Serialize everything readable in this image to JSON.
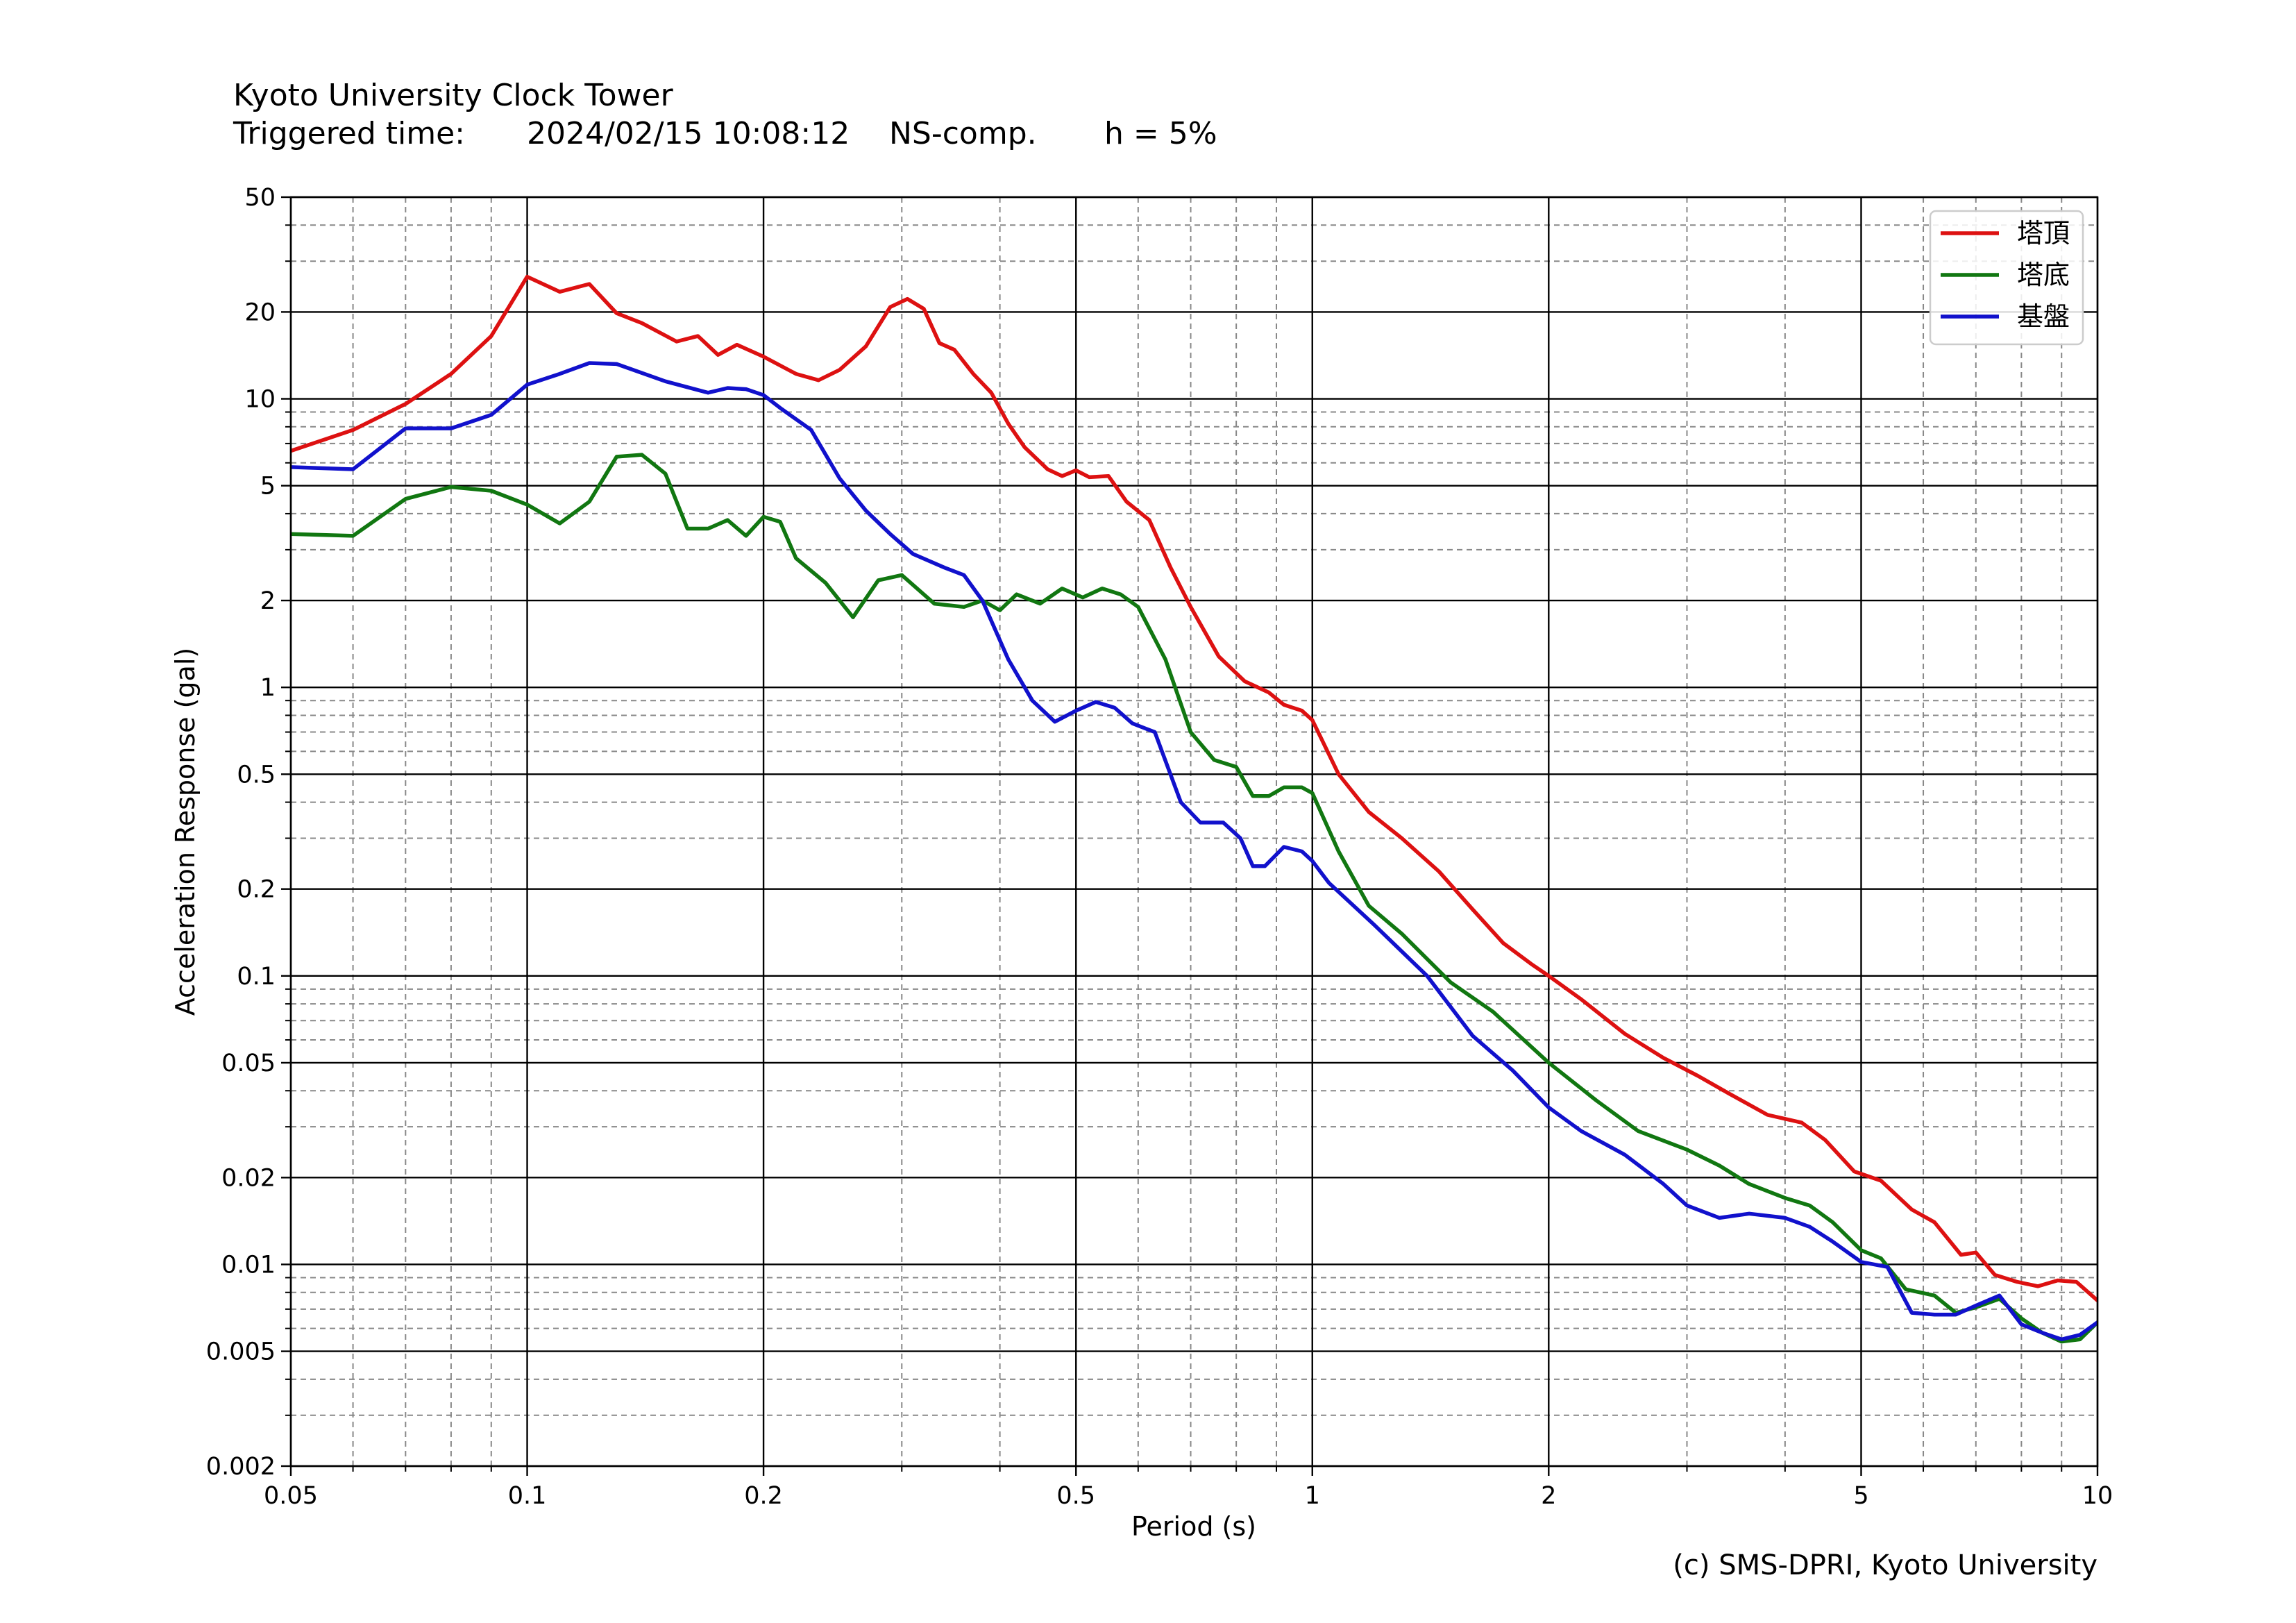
{
  "header": {
    "title": "Kyoto University Clock Tower",
    "triggered_label": "Triggered time:",
    "triggered_value": "2024/02/15 10:08:12",
    "component": "NS-comp.",
    "damping": "h = 5%"
  },
  "credit": "(c) SMS-DPRI, Kyoto University",
  "chart_data": {
    "type": "line",
    "title": "",
    "xlabel": "Period (s)",
    "ylabel": "Acceleration Response (gal)",
    "xscale": "log",
    "yscale": "log",
    "xlim": [
      0.05,
      10
    ],
    "ylim": [
      0.002,
      50
    ],
    "x_ticks": [
      0.05,
      0.1,
      0.2,
      0.5,
      1,
      2,
      5,
      10
    ],
    "x_tick_labels": [
      "0.05",
      "0.1",
      "0.2",
      "0.5",
      "1",
      "2",
      "5",
      "10"
    ],
    "y_ticks": [
      0.002,
      0.005,
      0.01,
      0.02,
      0.05,
      0.1,
      0.2,
      0.5,
      1,
      2,
      5,
      10,
      20,
      50
    ],
    "y_tick_labels": [
      "0.002",
      "0.005",
      "0.01",
      "0.02",
      "0.05",
      "0.1",
      "0.2",
      "0.5",
      "1",
      "2",
      "5",
      "10",
      "20",
      "50"
    ],
    "grid": "major and minor",
    "legend_position": "top-right",
    "series": [
      {
        "name": "塔頂",
        "color": "#dd1111",
        "points": [
          [
            0.05,
            6.6
          ],
          [
            0.06,
            7.8
          ],
          [
            0.07,
            9.6
          ],
          [
            0.08,
            12.2
          ],
          [
            0.09,
            16.5
          ],
          [
            0.1,
            26.5
          ],
          [
            0.11,
            23.5
          ],
          [
            0.12,
            25
          ],
          [
            0.13,
            19.8
          ],
          [
            0.14,
            18.3
          ],
          [
            0.155,
            15.8
          ],
          [
            0.165,
            16.5
          ],
          [
            0.175,
            14.2
          ],
          [
            0.185,
            15.4
          ],
          [
            0.2,
            14.0
          ],
          [
            0.22,
            12.2
          ],
          [
            0.235,
            11.6
          ],
          [
            0.25,
            12.6
          ],
          [
            0.27,
            15.2
          ],
          [
            0.29,
            20.8
          ],
          [
            0.305,
            22.2
          ],
          [
            0.32,
            20.5
          ],
          [
            0.335,
            15.6
          ],
          [
            0.35,
            14.8
          ],
          [
            0.37,
            12.2
          ],
          [
            0.39,
            10.5
          ],
          [
            0.41,
            8.2
          ],
          [
            0.43,
            6.8
          ],
          [
            0.46,
            5.7
          ],
          [
            0.48,
            5.4
          ],
          [
            0.5,
            5.65
          ],
          [
            0.52,
            5.35
          ],
          [
            0.55,
            5.4
          ],
          [
            0.58,
            4.4
          ],
          [
            0.62,
            3.8
          ],
          [
            0.66,
            2.6
          ],
          [
            0.7,
            1.9
          ],
          [
            0.76,
            1.28
          ],
          [
            0.82,
            1.05
          ],
          [
            0.88,
            0.96
          ],
          [
            0.92,
            0.87
          ],
          [
            0.97,
            0.83
          ],
          [
            1.0,
            0.77
          ],
          [
            1.08,
            0.5
          ],
          [
            1.18,
            0.37
          ],
          [
            1.3,
            0.3
          ],
          [
            1.45,
            0.23
          ],
          [
            1.6,
            0.17
          ],
          [
            1.75,
            0.13
          ],
          [
            1.9,
            0.11
          ],
          [
            2.0,
            0.1
          ],
          [
            2.2,
            0.083
          ],
          [
            2.5,
            0.063
          ],
          [
            2.8,
            0.052
          ],
          [
            3.1,
            0.045
          ],
          [
            3.4,
            0.039
          ],
          [
            3.8,
            0.033
          ],
          [
            4.2,
            0.031
          ],
          [
            4.5,
            0.027
          ],
          [
            4.9,
            0.021
          ],
          [
            5.3,
            0.0195
          ],
          [
            5.8,
            0.0155
          ],
          [
            6.2,
            0.014
          ],
          [
            6.7,
            0.0108
          ],
          [
            7.0,
            0.011
          ],
          [
            7.4,
            0.0092
          ],
          [
            7.9,
            0.0087
          ],
          [
            8.4,
            0.0084
          ],
          [
            8.9,
            0.0088
          ],
          [
            9.4,
            0.0087
          ],
          [
            10,
            0.0075
          ]
        ]
      },
      {
        "name": "塔底",
        "color": "#117711",
        "points": [
          [
            0.05,
            3.4
          ],
          [
            0.06,
            3.35
          ],
          [
            0.07,
            4.5
          ],
          [
            0.08,
            4.95
          ],
          [
            0.09,
            4.8
          ],
          [
            0.1,
            4.3
          ],
          [
            0.11,
            3.7
          ],
          [
            0.12,
            4.4
          ],
          [
            0.13,
            6.3
          ],
          [
            0.14,
            6.4
          ],
          [
            0.15,
            5.5
          ],
          [
            0.16,
            3.55
          ],
          [
            0.17,
            3.55
          ],
          [
            0.18,
            3.8
          ],
          [
            0.19,
            3.35
          ],
          [
            0.2,
            3.9
          ],
          [
            0.21,
            3.75
          ],
          [
            0.22,
            2.8
          ],
          [
            0.24,
            2.3
          ],
          [
            0.26,
            1.75
          ],
          [
            0.28,
            2.35
          ],
          [
            0.3,
            2.45
          ],
          [
            0.33,
            1.95
          ],
          [
            0.36,
            1.9
          ],
          [
            0.38,
            2.0
          ],
          [
            0.4,
            1.85
          ],
          [
            0.42,
            2.1
          ],
          [
            0.45,
            1.95
          ],
          [
            0.48,
            2.2
          ],
          [
            0.51,
            2.05
          ],
          [
            0.54,
            2.2
          ],
          [
            0.57,
            2.1
          ],
          [
            0.6,
            1.9
          ],
          [
            0.65,
            1.25
          ],
          [
            0.7,
            0.7
          ],
          [
            0.75,
            0.56
          ],
          [
            0.8,
            0.53
          ],
          [
            0.84,
            0.42
          ],
          [
            0.88,
            0.42
          ],
          [
            0.92,
            0.45
          ],
          [
            0.97,
            0.45
          ],
          [
            1.0,
            0.43
          ],
          [
            1.08,
            0.27
          ],
          [
            1.18,
            0.175
          ],
          [
            1.3,
            0.14
          ],
          [
            1.5,
            0.095
          ],
          [
            1.7,
            0.075
          ],
          [
            2.0,
            0.05
          ],
          [
            2.3,
            0.037
          ],
          [
            2.6,
            0.029
          ],
          [
            3.0,
            0.025
          ],
          [
            3.3,
            0.022
          ],
          [
            3.6,
            0.019
          ],
          [
            4.0,
            0.017
          ],
          [
            4.3,
            0.016
          ],
          [
            4.6,
            0.014
          ],
          [
            5.0,
            0.0112
          ],
          [
            5.3,
            0.0105
          ],
          [
            5.7,
            0.0082
          ],
          [
            6.2,
            0.0078
          ],
          [
            6.6,
            0.0068
          ],
          [
            7.0,
            0.0071
          ],
          [
            7.5,
            0.0076
          ],
          [
            8.0,
            0.0065
          ],
          [
            8.5,
            0.0058
          ],
          [
            9.0,
            0.0054
          ],
          [
            9.5,
            0.0055
          ],
          [
            10,
            0.0063
          ]
        ]
      },
      {
        "name": "基盤",
        "color": "#1111cc",
        "points": [
          [
            0.05,
            5.8
          ],
          [
            0.06,
            5.7
          ],
          [
            0.07,
            7.9
          ],
          [
            0.08,
            7.9
          ],
          [
            0.09,
            8.8
          ],
          [
            0.1,
            11.2
          ],
          [
            0.11,
            12.2
          ],
          [
            0.12,
            13.3
          ],
          [
            0.13,
            13.2
          ],
          [
            0.15,
            11.5
          ],
          [
            0.17,
            10.5
          ],
          [
            0.18,
            10.9
          ],
          [
            0.19,
            10.8
          ],
          [
            0.2,
            10.3
          ],
          [
            0.21,
            9.3
          ],
          [
            0.23,
            7.8
          ],
          [
            0.25,
            5.3
          ],
          [
            0.27,
            4.1
          ],
          [
            0.29,
            3.4
          ],
          [
            0.31,
            2.9
          ],
          [
            0.34,
            2.6
          ],
          [
            0.36,
            2.45
          ],
          [
            0.38,
            2.0
          ],
          [
            0.41,
            1.25
          ],
          [
            0.44,
            0.9
          ],
          [
            0.47,
            0.76
          ],
          [
            0.5,
            0.83
          ],
          [
            0.53,
            0.89
          ],
          [
            0.56,
            0.85
          ],
          [
            0.59,
            0.75
          ],
          [
            0.63,
            0.7
          ],
          [
            0.68,
            0.4
          ],
          [
            0.72,
            0.34
          ],
          [
            0.77,
            0.34
          ],
          [
            0.81,
            0.3
          ],
          [
            0.84,
            0.24
          ],
          [
            0.87,
            0.24
          ],
          [
            0.92,
            0.28
          ],
          [
            0.97,
            0.27
          ],
          [
            1.0,
            0.25
          ],
          [
            1.05,
            0.21
          ],
          [
            1.2,
            0.15
          ],
          [
            1.4,
            0.1
          ],
          [
            1.6,
            0.062
          ],
          [
            1.8,
            0.047
          ],
          [
            2.0,
            0.035
          ],
          [
            2.2,
            0.029
          ],
          [
            2.5,
            0.024
          ],
          [
            2.8,
            0.019
          ],
          [
            3.0,
            0.016
          ],
          [
            3.3,
            0.0145
          ],
          [
            3.6,
            0.015
          ],
          [
            4.0,
            0.0145
          ],
          [
            4.3,
            0.0135
          ],
          [
            4.6,
            0.012
          ],
          [
            5.0,
            0.0102
          ],
          [
            5.4,
            0.0098
          ],
          [
            5.8,
            0.0068
          ],
          [
            6.2,
            0.0067
          ],
          [
            6.6,
            0.0067
          ],
          [
            7.0,
            0.0072
          ],
          [
            7.5,
            0.0078
          ],
          [
            8.0,
            0.0062
          ],
          [
            8.5,
            0.0058
          ],
          [
            9.0,
            0.0055
          ],
          [
            9.5,
            0.0057
          ],
          [
            10,
            0.0063
          ]
        ]
      }
    ]
  }
}
